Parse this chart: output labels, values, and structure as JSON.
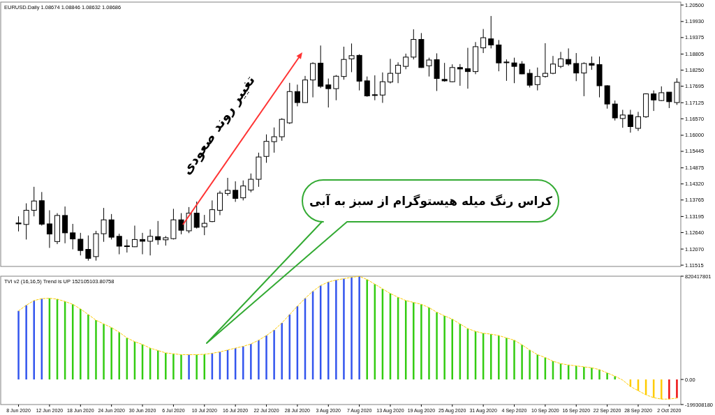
{
  "chart_data": [
    {
      "type": "candlestick",
      "title": "EURUSD.Daily  1.08674 1.08846 1.08632 1.08686",
      "tick_labels": "y",
      "categories": [
        null,
        null,
        null,
        null,
        null,
        null,
        null,
        null,
        null,
        null,
        null,
        null,
        null,
        null,
        null,
        null,
        null,
        null,
        null,
        null,
        null,
        null,
        null,
        null,
        null,
        null,
        null,
        null,
        null,
        null,
        null,
        null,
        null,
        null,
        null,
        null,
        null,
        null,
        null,
        null,
        null,
        null,
        null,
        null,
        null,
        null,
        null,
        null,
        null,
        null,
        null,
        null,
        null,
        null,
        null,
        null,
        null,
        null,
        null,
        null,
        null,
        null,
        null,
        null,
        null,
        null,
        null,
        null,
        null,
        null,
        null,
        null,
        null,
        null,
        null,
        null,
        null,
        null,
        null,
        null,
        null,
        null,
        null,
        null,
        null,
        null
      ],
      "ohlc": [
        [
          1.1297,
          1.132,
          1.1268,
          1.1294
        ],
        [
          1.1292,
          1.1365,
          1.124,
          1.1341
        ],
        [
          1.1341,
          1.1422,
          1.132,
          1.1373
        ],
        [
          1.1374,
          1.1404,
          1.1288,
          1.1293
        ],
        [
          1.1294,
          1.1341,
          1.1211,
          1.1259
        ],
        [
          1.1233,
          1.1331,
          1.1224,
          1.1323
        ],
        [
          1.1323,
          1.1354,
          1.1227,
          1.1263
        ],
        [
          1.1263,
          1.1294,
          1.1206,
          1.1242
        ],
        [
          1.1241,
          1.1263,
          1.1185,
          1.1202
        ],
        [
          1.1206,
          1.1254,
          1.1167,
          1.1175
        ],
        [
          1.1181,
          1.127,
          1.1167,
          1.126
        ],
        [
          1.126,
          1.1349,
          1.1232,
          1.1308
        ],
        [
          1.1308,
          1.1328,
          1.124,
          1.1248
        ],
        [
          1.1251,
          1.126,
          1.1189,
          1.1217
        ],
        [
          1.1218,
          1.124,
          1.1195,
          1.1217
        ],
        [
          1.1215,
          1.1288,
          1.1214,
          1.124
        ],
        [
          1.124,
          1.1263,
          1.1189,
          1.1234
        ],
        [
          1.1234,
          1.1275,
          1.1185,
          1.1251
        ],
        [
          1.125,
          1.1304,
          1.1222,
          1.1239
        ],
        [
          1.1239,
          1.1252,
          1.1219,
          1.1246
        ],
        [
          1.1243,
          1.1346,
          1.124,
          1.1308
        ],
        [
          1.1308,
          1.1331,
          1.1258,
          1.1272
        ],
        [
          1.127,
          1.1352,
          1.1262,
          1.1331
        ],
        [
          1.1331,
          1.1371,
          1.1278,
          1.1282
        ],
        [
          1.1284,
          1.1325,
          1.1255,
          1.1296
        ],
        [
          1.1302,
          1.1375,
          1.13,
          1.1343
        ],
        [
          1.1341,
          1.1408,
          1.1324,
          1.14
        ],
        [
          1.1399,
          1.1453,
          1.1391,
          1.141
        ],
        [
          1.141,
          1.1441,
          1.137,
          1.1382
        ],
        [
          1.1384,
          1.1444,
          1.1375,
          1.1425
        ],
        [
          1.1411,
          1.1468,
          1.1403,
          1.1448
        ],
        [
          1.1448,
          1.154,
          1.1422,
          1.1525
        ],
        [
          1.1527,
          1.1603,
          1.1505,
          1.1579
        ],
        [
          1.1578,
          1.1627,
          1.154,
          1.1595
        ],
        [
          1.1595,
          1.1659,
          1.1581,
          1.1655
        ],
        [
          1.1643,
          1.1781,
          1.1639,
          1.1751
        ],
        [
          1.1751,
          1.1775,
          1.17,
          1.1713
        ],
        [
          1.1713,
          1.1805,
          1.1712,
          1.1791
        ],
        [
          1.1791,
          1.1852,
          1.1731,
          1.1848
        ],
        [
          1.1849,
          1.191,
          1.1763,
          1.1769
        ],
        [
          1.1774,
          1.1796,
          1.1696,
          1.1761
        ],
        [
          1.1761,
          1.1808,
          1.1721,
          1.1804
        ],
        [
          1.1803,
          1.1906,
          1.1792,
          1.1862
        ],
        [
          1.1864,
          1.1917,
          1.1818,
          1.1875
        ],
        [
          1.1876,
          1.188,
          1.1755,
          1.1787
        ],
        [
          1.1788,
          1.1803,
          1.1733,
          1.1736
        ],
        [
          1.174,
          1.1807,
          1.1721,
          1.1738
        ],
        [
          1.1739,
          1.1817,
          1.1712,
          1.1785
        ],
        [
          1.1784,
          1.1864,
          1.1779,
          1.1814
        ],
        [
          1.1814,
          1.1852,
          1.178,
          1.1842
        ],
        [
          1.1838,
          1.1882,
          1.1828,
          1.187
        ],
        [
          1.187,
          1.1966,
          1.1862,
          1.1931
        ],
        [
          1.1931,
          1.1953,
          1.1833,
          1.1834
        ],
        [
          1.184,
          1.1868,
          1.1803,
          1.186
        ],
        [
          1.1861,
          1.1883,
          1.1753,
          1.1796
        ],
        [
          1.1793,
          1.185,
          1.1785,
          1.1788
        ],
        [
          1.1785,
          1.1845,
          1.1783,
          1.1834
        ],
        [
          1.1834,
          1.1846,
          1.1771,
          1.1829
        ],
        [
          1.183,
          1.1902,
          1.1761,
          1.182
        ],
        [
          1.182,
          1.1922,
          1.1811,
          1.1906
        ],
        [
          1.1902,
          1.1967,
          1.1884,
          1.1937
        ],
        [
          1.1933,
          1.2012,
          1.19,
          1.1912
        ],
        [
          1.1912,
          1.1929,
          1.1821,
          1.185
        ],
        [
          1.1853,
          1.1862,
          1.1788,
          1.1851
        ],
        [
          1.185,
          1.1868,
          1.178,
          1.1838
        ],
        [
          1.1846,
          1.1856,
          1.1811,
          1.1812
        ],
        [
          1.1814,
          1.1828,
          1.1765,
          1.1773
        ],
        [
          1.1775,
          1.1834,
          1.1755,
          1.1803
        ],
        [
          1.1803,
          1.1918,
          1.1799,
          1.1814
        ],
        [
          1.1814,
          1.1874,
          1.1811,
          1.1846
        ],
        [
          1.1838,
          1.1888,
          1.1832,
          1.1864
        ],
        [
          1.1862,
          1.19,
          1.184,
          1.1846
        ],
        [
          1.1848,
          1.1884,
          1.1787,
          1.1815
        ],
        [
          1.1815,
          1.1852,
          1.1735,
          1.1848
        ],
        [
          1.1848,
          1.1872,
          1.1826,
          1.1842
        ],
        [
          1.1844,
          1.1872,
          1.1731,
          1.1771
        ],
        [
          1.1771,
          1.1773,
          1.1692,
          1.1708
        ],
        [
          1.1708,
          1.172,
          1.1651,
          1.166
        ],
        [
          1.1658,
          1.1688,
          1.1626,
          1.167
        ],
        [
          1.167,
          1.1688,
          1.1609,
          1.163
        ],
        [
          1.1624,
          1.1681,
          1.1615,
          1.1664
        ],
        [
          1.1664,
          1.1745,
          1.166,
          1.1743
        ],
        [
          1.1743,
          1.1755,
          1.1684,
          1.1722
        ],
        [
          1.172,
          1.1769,
          1.1718,
          1.1747
        ],
        [
          1.1749,
          1.1749,
          1.1694,
          1.1716
        ],
        [
          1.1713,
          1.1797,
          1.1705,
          1.1783
        ]
      ],
      "ylim": [
        1.1147,
        1.206
      ],
      "yticks": [
        {
          "value": 1.205,
          "label": "1.20500"
        },
        {
          "value": 1.1993,
          "label": "1.19930"
        },
        {
          "value": 1.19375,
          "label": "1.19375"
        },
        {
          "value": 1.18805,
          "label": "1.18805"
        },
        {
          "value": 1.1825,
          "label": "1.18250"
        },
        {
          "value": 1.17695,
          "label": "1.17695"
        },
        {
          "value": 1.17125,
          "label": "1.17125"
        },
        {
          "value": 1.1657,
          "label": "1.16570"
        },
        {
          "value": 1.16,
          "label": "1.16000"
        },
        {
          "value": 1.15445,
          "label": "1.15445"
        },
        {
          "value": 1.14875,
          "label": "1.14875"
        },
        {
          "value": 1.1432,
          "label": "1.14320"
        },
        {
          "value": 1.13765,
          "label": "1.13765"
        },
        {
          "value": 1.13195,
          "label": "1.13195"
        },
        {
          "value": 1.1264,
          "label": "1.12640"
        },
        {
          "value": 1.1207,
          "label": "1.12070"
        },
        {
          "value": 1.11515,
          "label": "1.11515"
        }
      ],
      "annotations": [
        "تغییر روند صعودی"
      ]
    },
    {
      "type": "bar",
      "title": "TVI v2 (16,16,5) Trend is UP 152105103.80758",
      "categories": [
        "8 Jun 2020",
        null,
        null,
        null,
        "12 Jun 2020",
        null,
        null,
        null,
        "18 Jun 2020",
        null,
        null,
        null,
        "24 Jun 2020",
        null,
        null,
        null,
        "30 Jun 2020",
        null,
        null,
        null,
        "6 Jul 2020",
        null,
        null,
        null,
        "10 Jul 2020",
        null,
        null,
        null,
        "16 Jul 2020",
        null,
        null,
        null,
        "22 Jul 2020",
        null,
        null,
        null,
        "28 Jul 2020",
        null,
        null,
        null,
        "3 Aug 2020",
        null,
        null,
        null,
        "7 Aug 2020",
        null,
        null,
        null,
        "13 Aug 2020",
        null,
        null,
        null,
        "19 Aug 2020",
        null,
        null,
        null,
        "25 Aug 2020",
        null,
        null,
        null,
        "31 Aug 2020",
        null,
        null,
        null,
        "4 Sep 2020",
        null,
        null,
        null,
        "10 Sep 2020",
        null,
        null,
        null,
        "16 Sep 2020",
        null,
        null,
        null,
        "22 Sep 2020",
        null,
        null,
        null,
        "28 Sep 2020",
        null,
        null,
        null,
        "2 Oct 2020",
        null
      ],
      "series": [
        {
          "type": "bar",
          "values": [
            545000000,
            590000000,
            627000000,
            642000000,
            645000000,
            638000000,
            620000000,
            597000000,
            560000000,
            516000000,
            471000000,
            441000000,
            412000000,
            375000000,
            330000000,
            300000000,
            278000000,
            249000000,
            230000000,
            211000000,
            204000000,
            197000000,
            197000000,
            197000000,
            200000000,
            208000000,
            219000000,
            234000000,
            249000000,
            263000000,
            282000000,
            312000000,
            349000000,
            393000000,
            449000000,
            516000000,
            582000000,
            645000000,
            701000000,
            746000000,
            775000000,
            790000000,
            801000000,
            812000000,
            820000000,
            794000000,
            757000000,
            720000000,
            683000000,
            653000000,
            627000000,
            612000000,
            597000000,
            571000000,
            534000000,
            505000000,
            479000000,
            441000000,
            404000000,
            382000000,
            367000000,
            360000000,
            349000000,
            330000000,
            312000000,
            275000000,
            234000000,
            197000000,
            174000000,
            145000000,
            126000000,
            115000000,
            108000000,
            100000000,
            93000000,
            78000000,
            52000000,
            26000000,
            null,
            -56000000,
            -89000000,
            -122000000,
            -145000000,
            -156000000,
            -156000000,
            -148000000
          ],
          "colors": [
            "#3355ee",
            "#3355ee",
            "#3355ee",
            "#3355ee",
            "#33cc11",
            "#33cc11",
            "#33cc11",
            "#33cc11",
            "#33cc11",
            "#33cc11",
            "#33cc11",
            "#33cc11",
            "#33cc11",
            "#33cc11",
            "#33cc11",
            "#33cc11",
            "#33cc11",
            "#33cc11",
            "#33cc11",
            "#33cc11",
            "#33cc11",
            "#33cc11",
            "#3355ee",
            "#33cc11",
            "#33cc11",
            "#3355ee",
            "#3355ee",
            "#3355ee",
            "#3355ee",
            "#3355ee",
            "#3355ee",
            "#3355ee",
            "#3355ee",
            "#3355ee",
            "#3355ee",
            "#3355ee",
            "#3355ee",
            "#3355ee",
            "#3355ee",
            "#3355ee",
            "#3355ee",
            "#3355ee",
            "#3355ee",
            "#3355ee",
            "#3355ee",
            "#33cc11",
            "#33cc11",
            "#33cc11",
            "#33cc11",
            "#33cc11",
            "#33cc11",
            "#33cc11",
            "#33cc11",
            "#33cc11",
            "#33cc11",
            "#33cc11",
            "#33cc11",
            "#33cc11",
            "#33cc11",
            "#33cc11",
            "#33cc11",
            "#33cc11",
            "#33cc11",
            "#33cc11",
            "#33cc11",
            "#33cc11",
            "#33cc11",
            "#33cc11",
            "#33cc11",
            "#33cc11",
            "#33cc11",
            "#33cc11",
            "#33cc11",
            "#33cc11",
            "#33cc11",
            "#33cc11",
            "#33cc11",
            "#33cc11",
            null,
            "#ffcc00",
            "#ffcc00",
            "#ffcc00",
            "#ffcc00",
            "#ffcc00",
            "#ee1111",
            "#ee1111"
          ]
        },
        {
          "type": "line",
          "color": "#ffcc00",
          "line_style": "dashed",
          "values": [
            545000000,
            590000000,
            627000000,
            642000000,
            645000000,
            638000000,
            620000000,
            597000000,
            560000000,
            516000000,
            471000000,
            441000000,
            412000000,
            375000000,
            330000000,
            300000000,
            278000000,
            249000000,
            230000000,
            211000000,
            204000000,
            197000000,
            197000000,
            197000000,
            200000000,
            208000000,
            219000000,
            234000000,
            249000000,
            263000000,
            282000000,
            312000000,
            349000000,
            393000000,
            449000000,
            516000000,
            582000000,
            645000000,
            701000000,
            746000000,
            775000000,
            790000000,
            801000000,
            812000000,
            820000000,
            794000000,
            757000000,
            720000000,
            683000000,
            653000000,
            627000000,
            612000000,
            597000000,
            571000000,
            534000000,
            505000000,
            479000000,
            441000000,
            404000000,
            382000000,
            367000000,
            360000000,
            349000000,
            330000000,
            312000000,
            275000000,
            234000000,
            197000000,
            174000000,
            145000000,
            126000000,
            115000000,
            108000000,
            100000000,
            93000000,
            78000000,
            52000000,
            26000000,
            -5000000,
            -56000000,
            -89000000,
            -122000000,
            -145000000,
            -156000000,
            -156000000,
            -148000000
          ]
        }
      ],
      "ylim": [
        -199308180,
        820417801
      ],
      "yticks": [
        -199308180,
        {
          "value": 0,
          "label": "0.00"
        },
        820417801
      ],
      "annotations": [
        "کراس رنگ میله هیستوگرام از سبز به آبی"
      ]
    }
  ]
}
